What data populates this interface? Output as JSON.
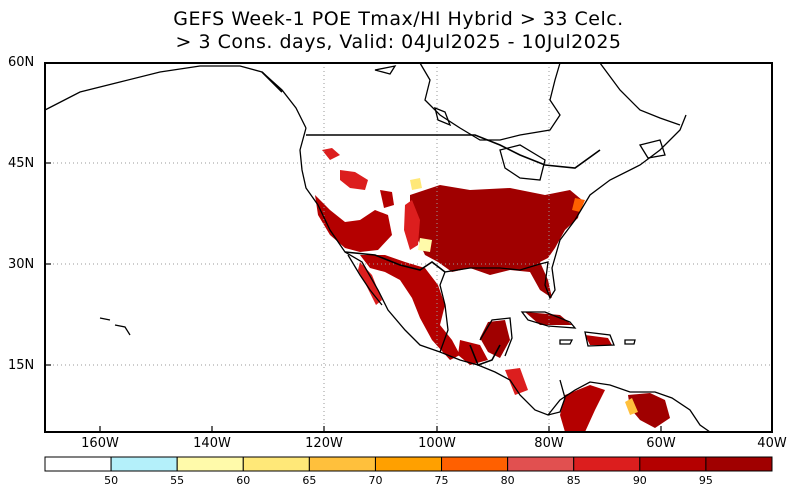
{
  "title": {
    "line1": "GEFS Week-1 POE Tmax/HI Hybrid > 33 Celc.",
    "line2": "> 3 Cons. days, Valid: 04Jul2025 - 10Jul2025"
  },
  "map": {
    "lat_labels": [
      "60N",
      "45N",
      "30N",
      "15N"
    ],
    "lon_labels": [
      "160W",
      "140W",
      "120W",
      "100W",
      "80W",
      "60W",
      "40W"
    ],
    "lat_range": [
      5,
      60
    ],
    "lon_range": [
      -170,
      -40
    ],
    "grid": "dotted",
    "region": "North America, Mexico, Central America, Caribbean, northern South America"
  },
  "colorbar": {
    "labels": [
      "50",
      "55",
      "60",
      "65",
      "70",
      "75",
      "80",
      "85",
      "90",
      "95"
    ],
    "colors": [
      "#ffffff",
      "#b4f0fa",
      "#fffaaa",
      "#ffe878",
      "#ffc03c",
      "#ffa000",
      "#ff6000",
      "#e15050",
      "#dc1e1e",
      "#b40000",
      "#a00000"
    ]
  }
}
